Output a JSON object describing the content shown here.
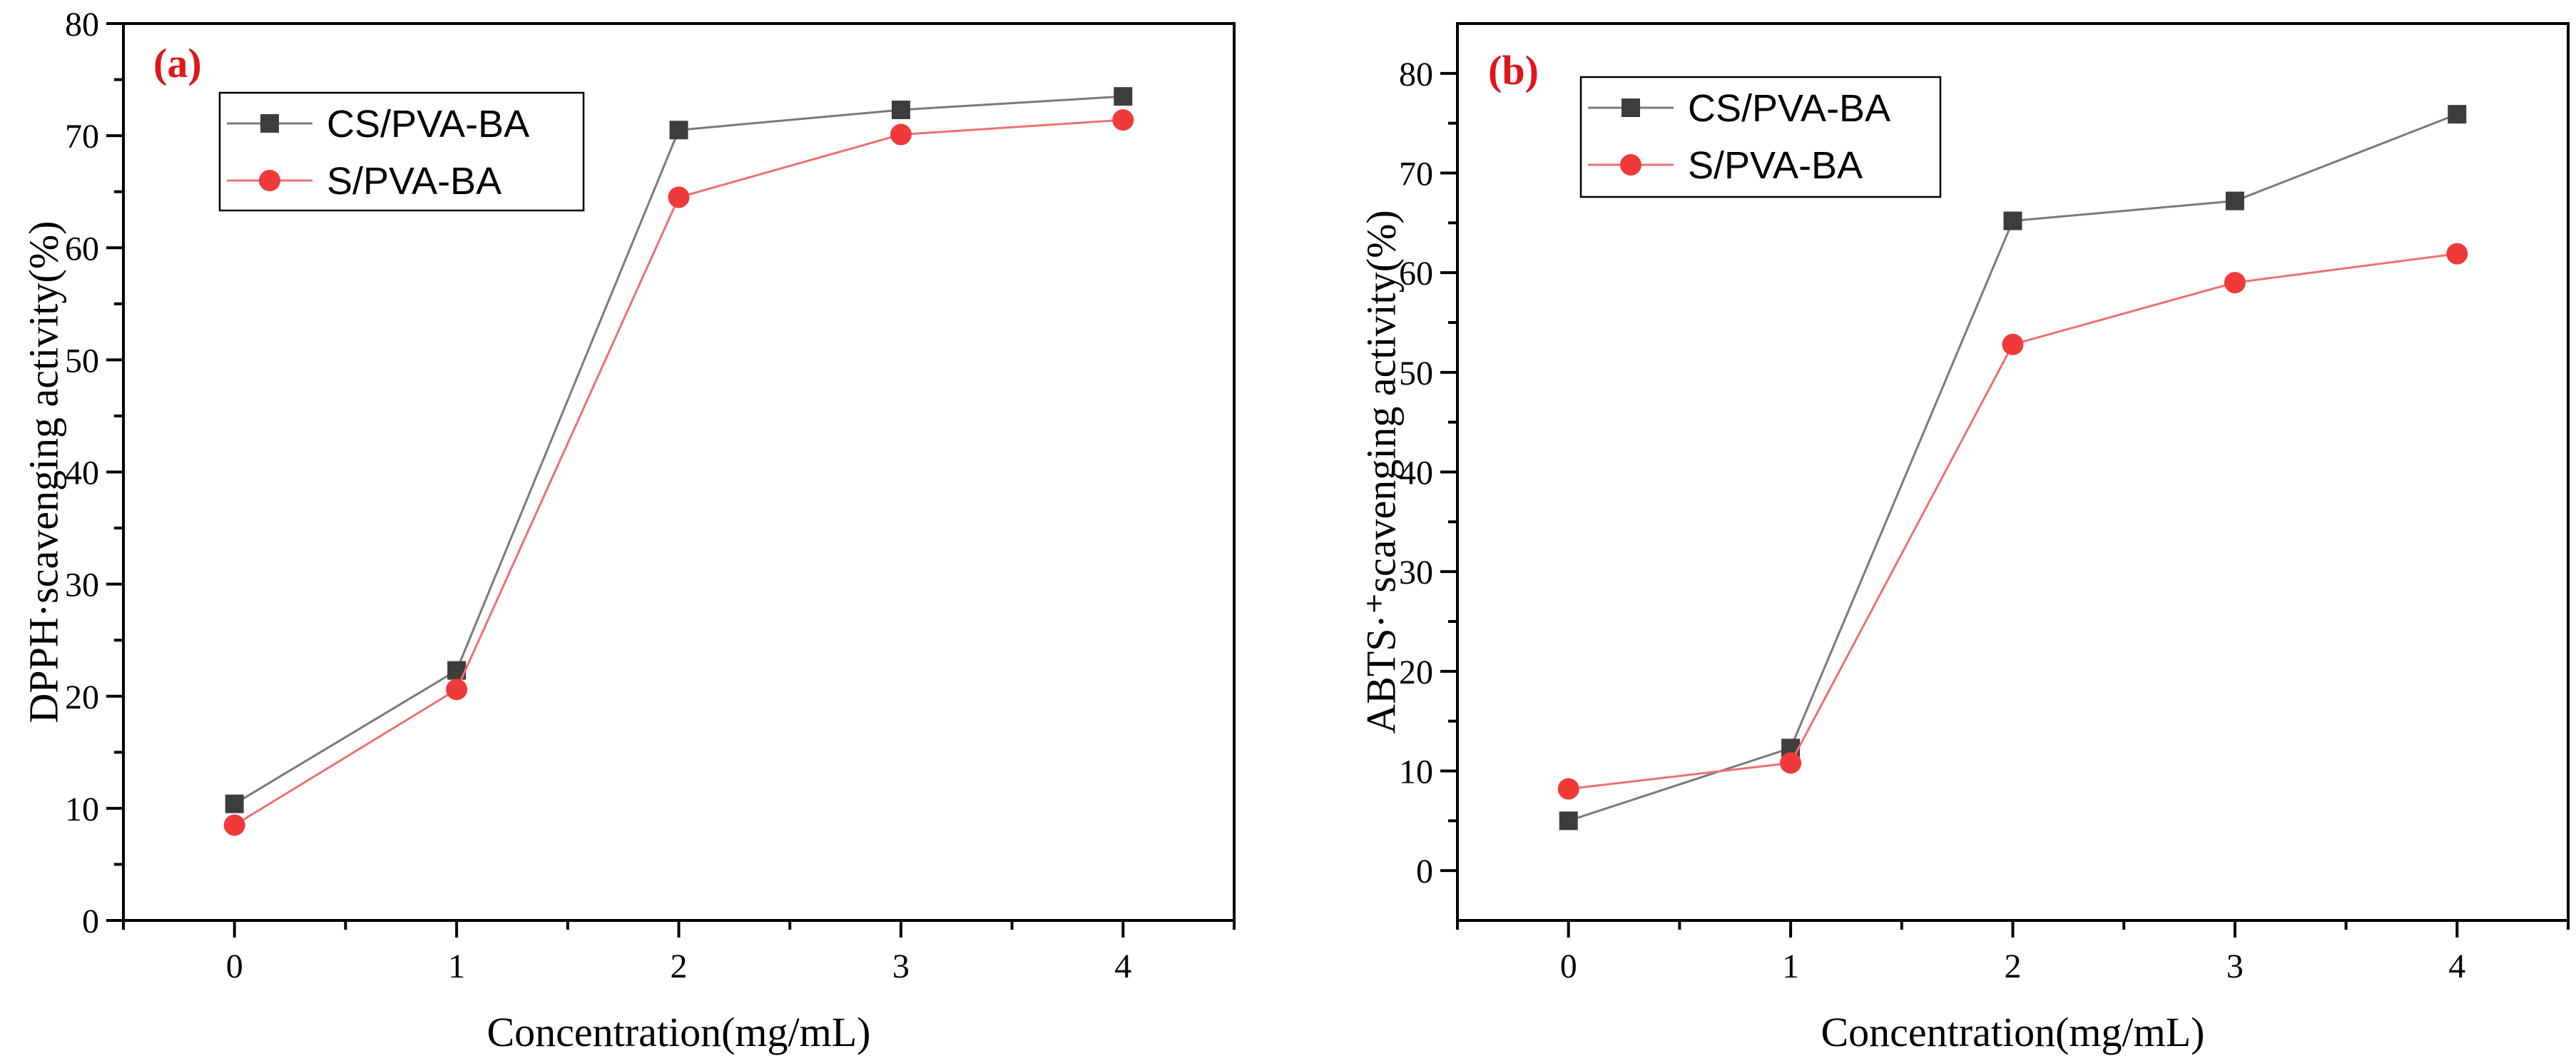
{
  "chart_data": [
    {
      "type": "line",
      "panel_label": "(a)",
      "x": [
        0,
        1,
        2,
        3,
        4
      ],
      "xticks": [
        "0",
        "1",
        "2",
        "3",
        "4"
      ],
      "xlim": [
        -0.5,
        4.5
      ],
      "yticks": [
        "0",
        "10",
        "20",
        "30",
        "40",
        "50",
        "60",
        "70",
        "80"
      ],
      "ylim": [
        0,
        80
      ],
      "xlabel": "Concentration(mg/mL)",
      "ylabel": "DPPH·scavenging activity(%)",
      "legend_position": "top-left",
      "series": [
        {
          "name": "CS/PVA-BA",
          "marker": "square",
          "values": [
            10.4,
            22.3,
            70.5,
            72.3,
            73.5
          ]
        },
        {
          "name": "S/PVA-BA",
          "marker": "circle",
          "values": [
            8.5,
            20.6,
            64.5,
            70.1,
            71.4
          ]
        }
      ]
    },
    {
      "type": "line",
      "panel_label": "(b)",
      "x": [
        0,
        1,
        2,
        3,
        4
      ],
      "xticks": [
        "0",
        "1",
        "2",
        "3",
        "4"
      ],
      "xlim": [
        -0.5,
        4.5
      ],
      "yticks": [
        "0",
        "10",
        "20",
        "30",
        "40",
        "50",
        "60",
        "70",
        "80"
      ],
      "ylim": [
        -5,
        85
      ],
      "xlabel": "Concentration(mg/mL)",
      "ylabel": "ABTS·⁺scavenging activity(%)",
      "legend_position": "top-left",
      "series": [
        {
          "name": "CS/PVA-BA",
          "marker": "square",
          "values": [
            5.0,
            12.3,
            65.2,
            67.2,
            75.9
          ]
        },
        {
          "name": "S/PVA-BA",
          "marker": "circle",
          "values": [
            8.2,
            10.8,
            52.8,
            59.0,
            61.9
          ]
        }
      ]
    }
  ],
  "colors": {
    "series_1": "#3d3d3d",
    "series_1_line": "#7a7a7a",
    "series_2": "#f03a3a",
    "series_2_line": "#f07070",
    "panel_label": "#e0151a"
  }
}
